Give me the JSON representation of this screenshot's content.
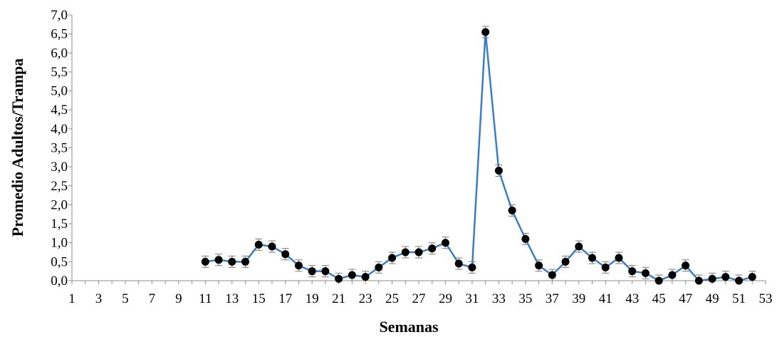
{
  "chart_data": {
    "type": "line",
    "xlabel": "Semanas",
    "ylabel": "Promedio Adultos/Trampa",
    "xlim": [
      1,
      53
    ],
    "ylim": [
      0,
      7
    ],
    "x_tick_labels": [
      "1",
      "3",
      "5",
      "7",
      "9",
      "11",
      "13",
      "15",
      "17",
      "19",
      "21",
      "23",
      "25",
      "27",
      "29",
      "31",
      "33",
      "35",
      "37",
      "39",
      "41",
      "43",
      "45",
      "47",
      "49",
      "51",
      "53"
    ],
    "y_tick_labels": [
      "0,0",
      "0,5",
      "1,0",
      "1,5",
      "2,0",
      "2,5",
      "3,0",
      "3,5",
      "4,0",
      "4,5",
      "5,0",
      "5,5",
      "6,0",
      "6,5",
      "7,0"
    ],
    "grid": false,
    "line_color": "#3a7dc4",
    "marker_color": "#000000",
    "error_bar_color": "#7a7a7a",
    "series": [
      {
        "x": [
          11,
          12,
          13,
          14,
          15,
          16,
          17,
          18,
          19,
          20,
          21,
          22,
          23,
          24,
          25,
          26,
          27,
          28,
          29,
          30,
          31,
          32,
          33,
          34,
          35,
          36,
          37,
          38,
          39,
          40,
          41,
          42,
          43,
          44,
          45,
          46,
          47,
          48,
          49,
          50,
          51,
          52
        ],
        "values": [
          0.5,
          0.55,
          0.5,
          0.5,
          0.95,
          0.9,
          0.7,
          0.4,
          0.25,
          0.25,
          0.05,
          0.15,
          0.1,
          0.35,
          0.6,
          0.75,
          0.75,
          0.85,
          1.0,
          0.45,
          0.35,
          6.55,
          2.9,
          1.85,
          1.1,
          0.4,
          0.15,
          0.5,
          0.9,
          0.6,
          0.35,
          0.6,
          0.25,
          0.2,
          0.0,
          0.15,
          0.4,
          0.0,
          0.05,
          0.1,
          0.0,
          0.1
        ],
        "errors": [
          0.15,
          0.15,
          0.15,
          0.15,
          0.15,
          0.15,
          0.15,
          0.15,
          0.15,
          0.15,
          0.15,
          0.15,
          0.15,
          0.15,
          0.15,
          0.15,
          0.15,
          0.15,
          0.15,
          0.15,
          0.15,
          0.15,
          0.15,
          0.15,
          0.15,
          0.15,
          0.15,
          0.15,
          0.15,
          0.15,
          0.15,
          0.15,
          0.15,
          0.15,
          0.15,
          0.15,
          0.15,
          0.15,
          0.15,
          0.15,
          0.15,
          0.15
        ]
      }
    ]
  }
}
